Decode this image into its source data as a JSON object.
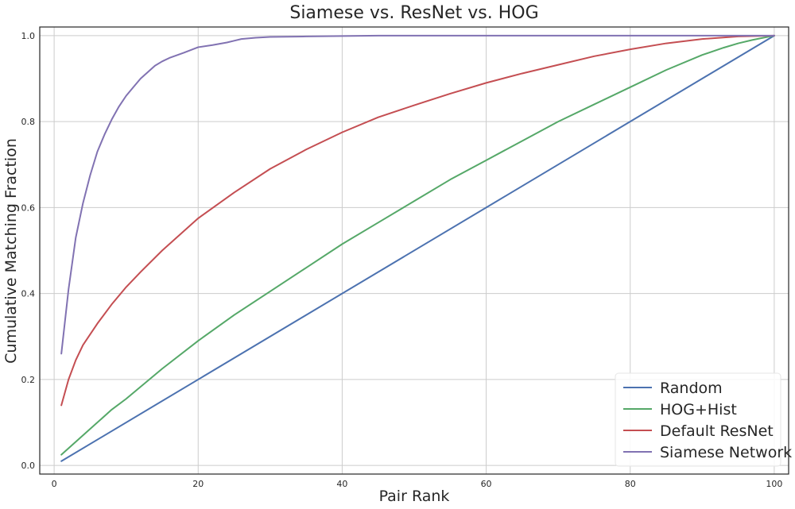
{
  "chart_data": {
    "type": "line",
    "title": "Siamese vs. ResNet vs. HOG",
    "xlabel": "Pair Rank",
    "ylabel": "Cumulative Matching Fraction",
    "xlim": [
      -2,
      102
    ],
    "ylim": [
      -0.02,
      1.02
    ],
    "xticks": [
      0,
      20,
      40,
      60,
      80,
      100
    ],
    "yticks": [
      0.0,
      0.2,
      0.4,
      0.6,
      0.8,
      1.0
    ],
    "xtick_labels": [
      "0",
      "20",
      "40",
      "60",
      "80",
      "100"
    ],
    "ytick_labels": [
      "0.0",
      "0.2",
      "0.4",
      "0.6",
      "0.8",
      "1.0"
    ],
    "grid": true,
    "legend_position": "bottom-right",
    "series": [
      {
        "name": "Random",
        "color": "#4c72b0",
        "x": [
          1,
          100
        ],
        "values": [
          0.01,
          1.0
        ]
      },
      {
        "name": "HOG+Hist",
        "color": "#55a868",
        "x": [
          1,
          2,
          3,
          5,
          8,
          10,
          15,
          20,
          25,
          30,
          35,
          40,
          45,
          50,
          55,
          60,
          65,
          70,
          75,
          80,
          85,
          90,
          93,
          95,
          97,
          100
        ],
        "values": [
          0.025,
          0.04,
          0.055,
          0.085,
          0.13,
          0.155,
          0.225,
          0.29,
          0.35,
          0.405,
          0.46,
          0.515,
          0.565,
          0.615,
          0.665,
          0.71,
          0.755,
          0.8,
          0.84,
          0.88,
          0.92,
          0.955,
          0.972,
          0.982,
          0.99,
          1.0
        ]
      },
      {
        "name": "Default ResNet",
        "color": "#c44e52",
        "x": [
          1,
          2,
          3,
          4,
          5,
          6,
          8,
          10,
          12,
          15,
          18,
          20,
          25,
          30,
          35,
          40,
          45,
          50,
          55,
          60,
          65,
          70,
          75,
          80,
          85,
          90,
          95,
          100
        ],
        "values": [
          0.14,
          0.2,
          0.245,
          0.28,
          0.305,
          0.33,
          0.375,
          0.415,
          0.45,
          0.5,
          0.545,
          0.575,
          0.635,
          0.69,
          0.735,
          0.775,
          0.81,
          0.838,
          0.865,
          0.89,
          0.912,
          0.932,
          0.952,
          0.968,
          0.982,
          0.992,
          0.998,
          1.0
        ]
      },
      {
        "name": "Siamese Network",
        "color": "#8172b2",
        "x": [
          1,
          2,
          3,
          4,
          5,
          6,
          7,
          8,
          9,
          10,
          11,
          12,
          13,
          14,
          15,
          16,
          18,
          20,
          22,
          24,
          25,
          26,
          28,
          30,
          35,
          40,
          45,
          50,
          100
        ],
        "values": [
          0.26,
          0.41,
          0.53,
          0.61,
          0.675,
          0.73,
          0.77,
          0.805,
          0.835,
          0.86,
          0.88,
          0.9,
          0.915,
          0.93,
          0.94,
          0.948,
          0.96,
          0.973,
          0.978,
          0.984,
          0.988,
          0.992,
          0.995,
          0.997,
          0.998,
          0.999,
          1.0,
          1.0,
          1.0
        ]
      }
    ]
  }
}
